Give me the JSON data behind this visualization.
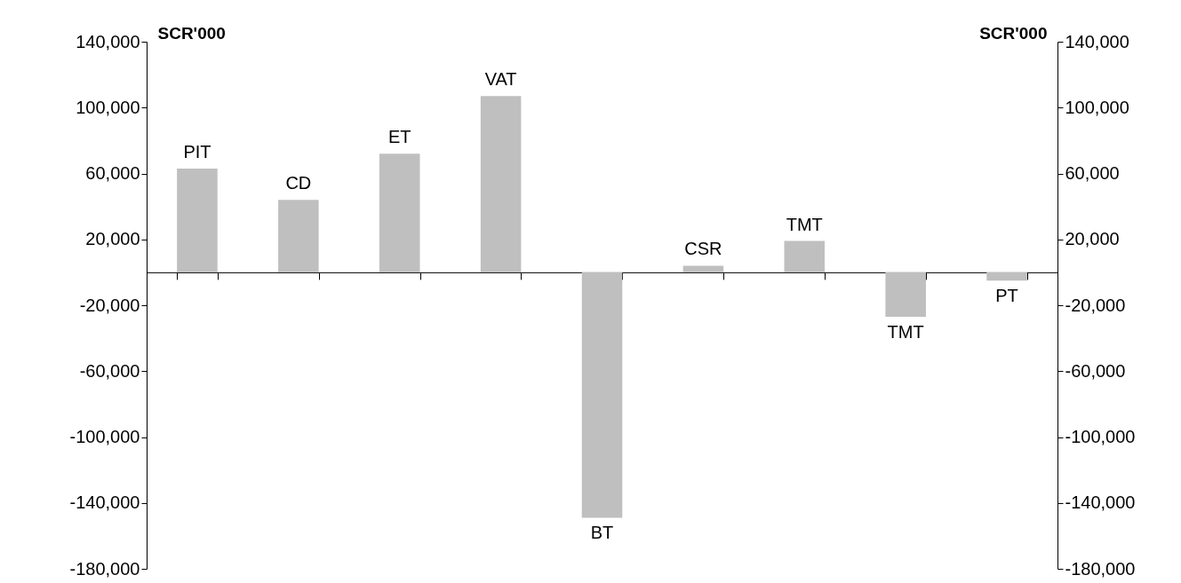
{
  "chart_data": {
    "type": "bar",
    "categories": [
      "PIT",
      "CD",
      "ET",
      "VAT",
      "BT",
      "CSR",
      "TMT",
      "TMT",
      "PT"
    ],
    "values": [
      63000,
      44000,
      72000,
      107000,
      -149000,
      4000,
      19000,
      -27000,
      -5000
    ],
    "color": "#bfbfbf",
    "ylabel": "SCR'000",
    "y2label": "SCR'000",
    "ylim": [
      -180000,
      140000
    ],
    "yticks": [
      {
        "value": -180000,
        "label": "-180,000"
      },
      {
        "value": -140000,
        "label": "-140,000"
      },
      {
        "value": -100000,
        "label": "-100,000"
      },
      {
        "value": -60000,
        "label": "-60,000"
      },
      {
        "value": -20000,
        "label": "-20,000"
      },
      {
        "value": 20000,
        "label": "20,000"
      },
      {
        "value": 60000,
        "label": "60,000"
      },
      {
        "value": 100000,
        "label": "100,000"
      },
      {
        "value": 140000,
        "label": "140,000"
      }
    ],
    "y2lim": [
      -180000,
      140000
    ],
    "y2ticks": [
      {
        "value": -180000,
        "label": "-180,000"
      },
      {
        "value": -140000,
        "label": "-140,000"
      },
      {
        "value": -100000,
        "label": "-100,000"
      },
      {
        "value": -60000,
        "label": "-60,000"
      },
      {
        "value": -20000,
        "label": "-20,000"
      },
      {
        "value": 20000,
        "label": "20,000"
      },
      {
        "value": 60000,
        "label": "60,000"
      },
      {
        "value": 100000,
        "label": "100,000"
      },
      {
        "value": 140000,
        "label": "140,000"
      }
    ],
    "tick_labels": "y"
  }
}
